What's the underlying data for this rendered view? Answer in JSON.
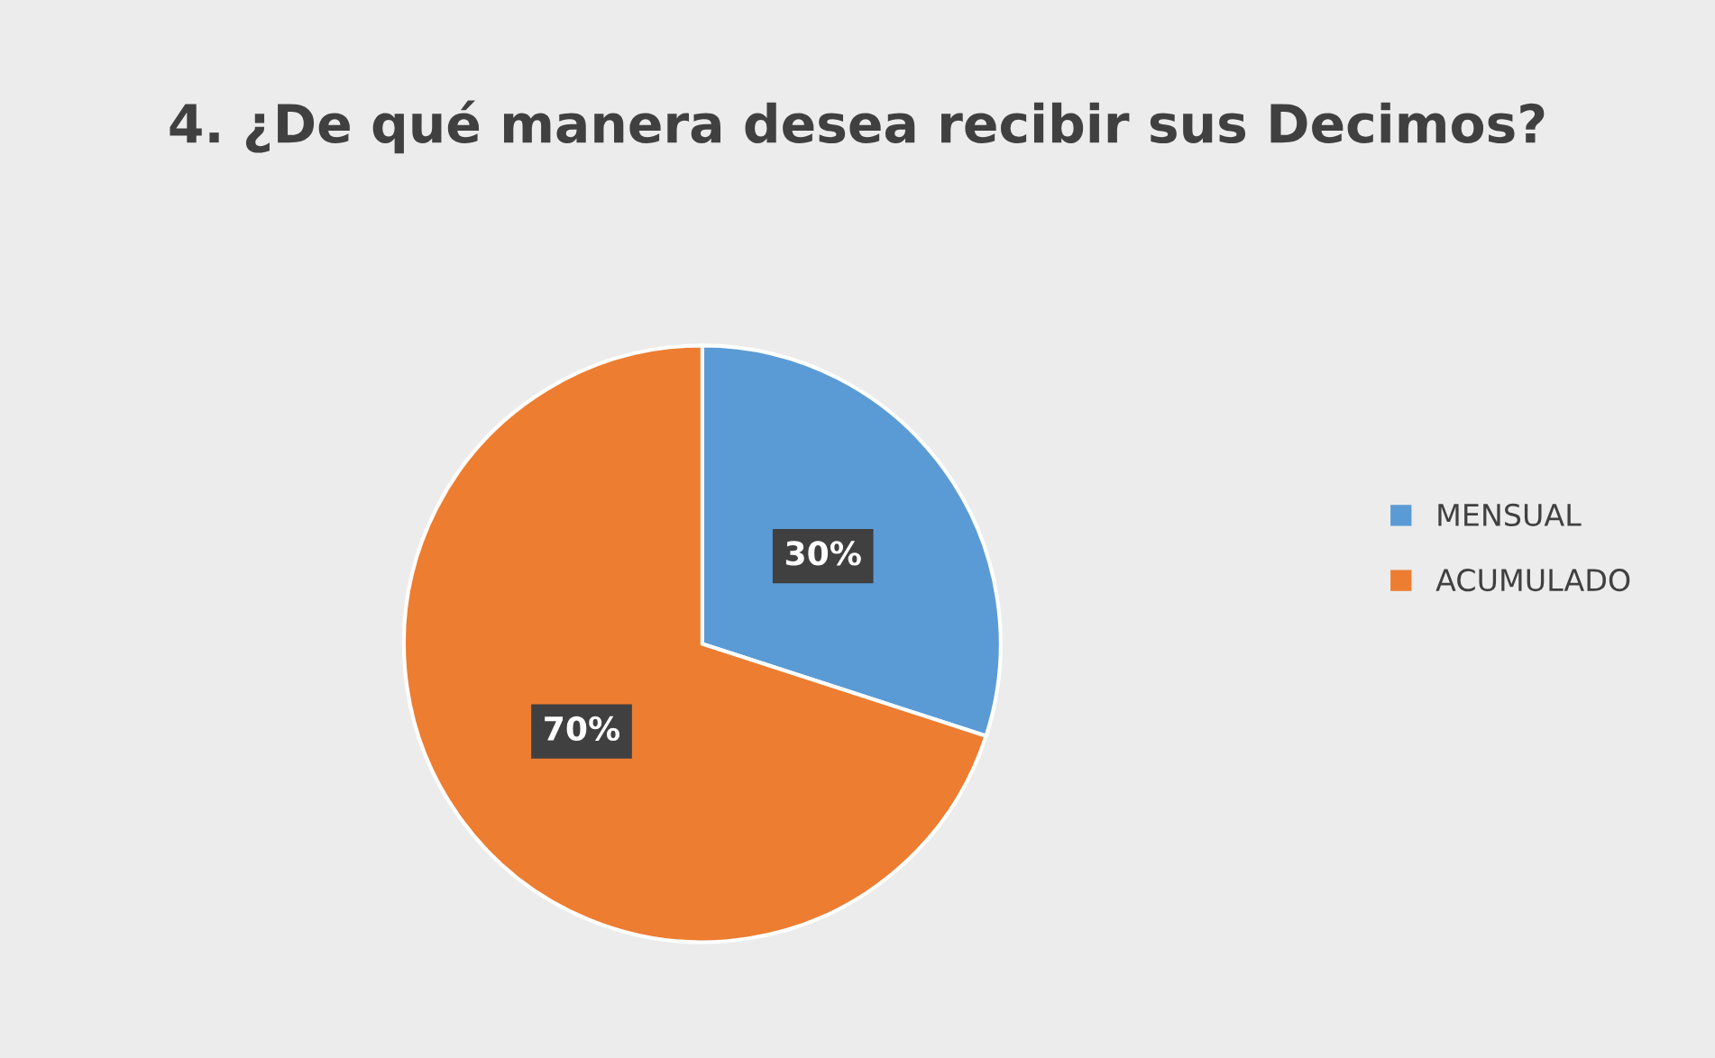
{
  "chart_data": {
    "type": "pie",
    "title": "4. ¿De qué manera desea recibir sus Decimos?",
    "categories": [
      "MENSUAL",
      "ACUMULADO"
    ],
    "values": [
      30,
      70
    ],
    "colors": [
      "#5b9bd5",
      "#ed7d31"
    ],
    "value_labels": [
      "30%",
      "70%"
    ],
    "legend": "right"
  }
}
